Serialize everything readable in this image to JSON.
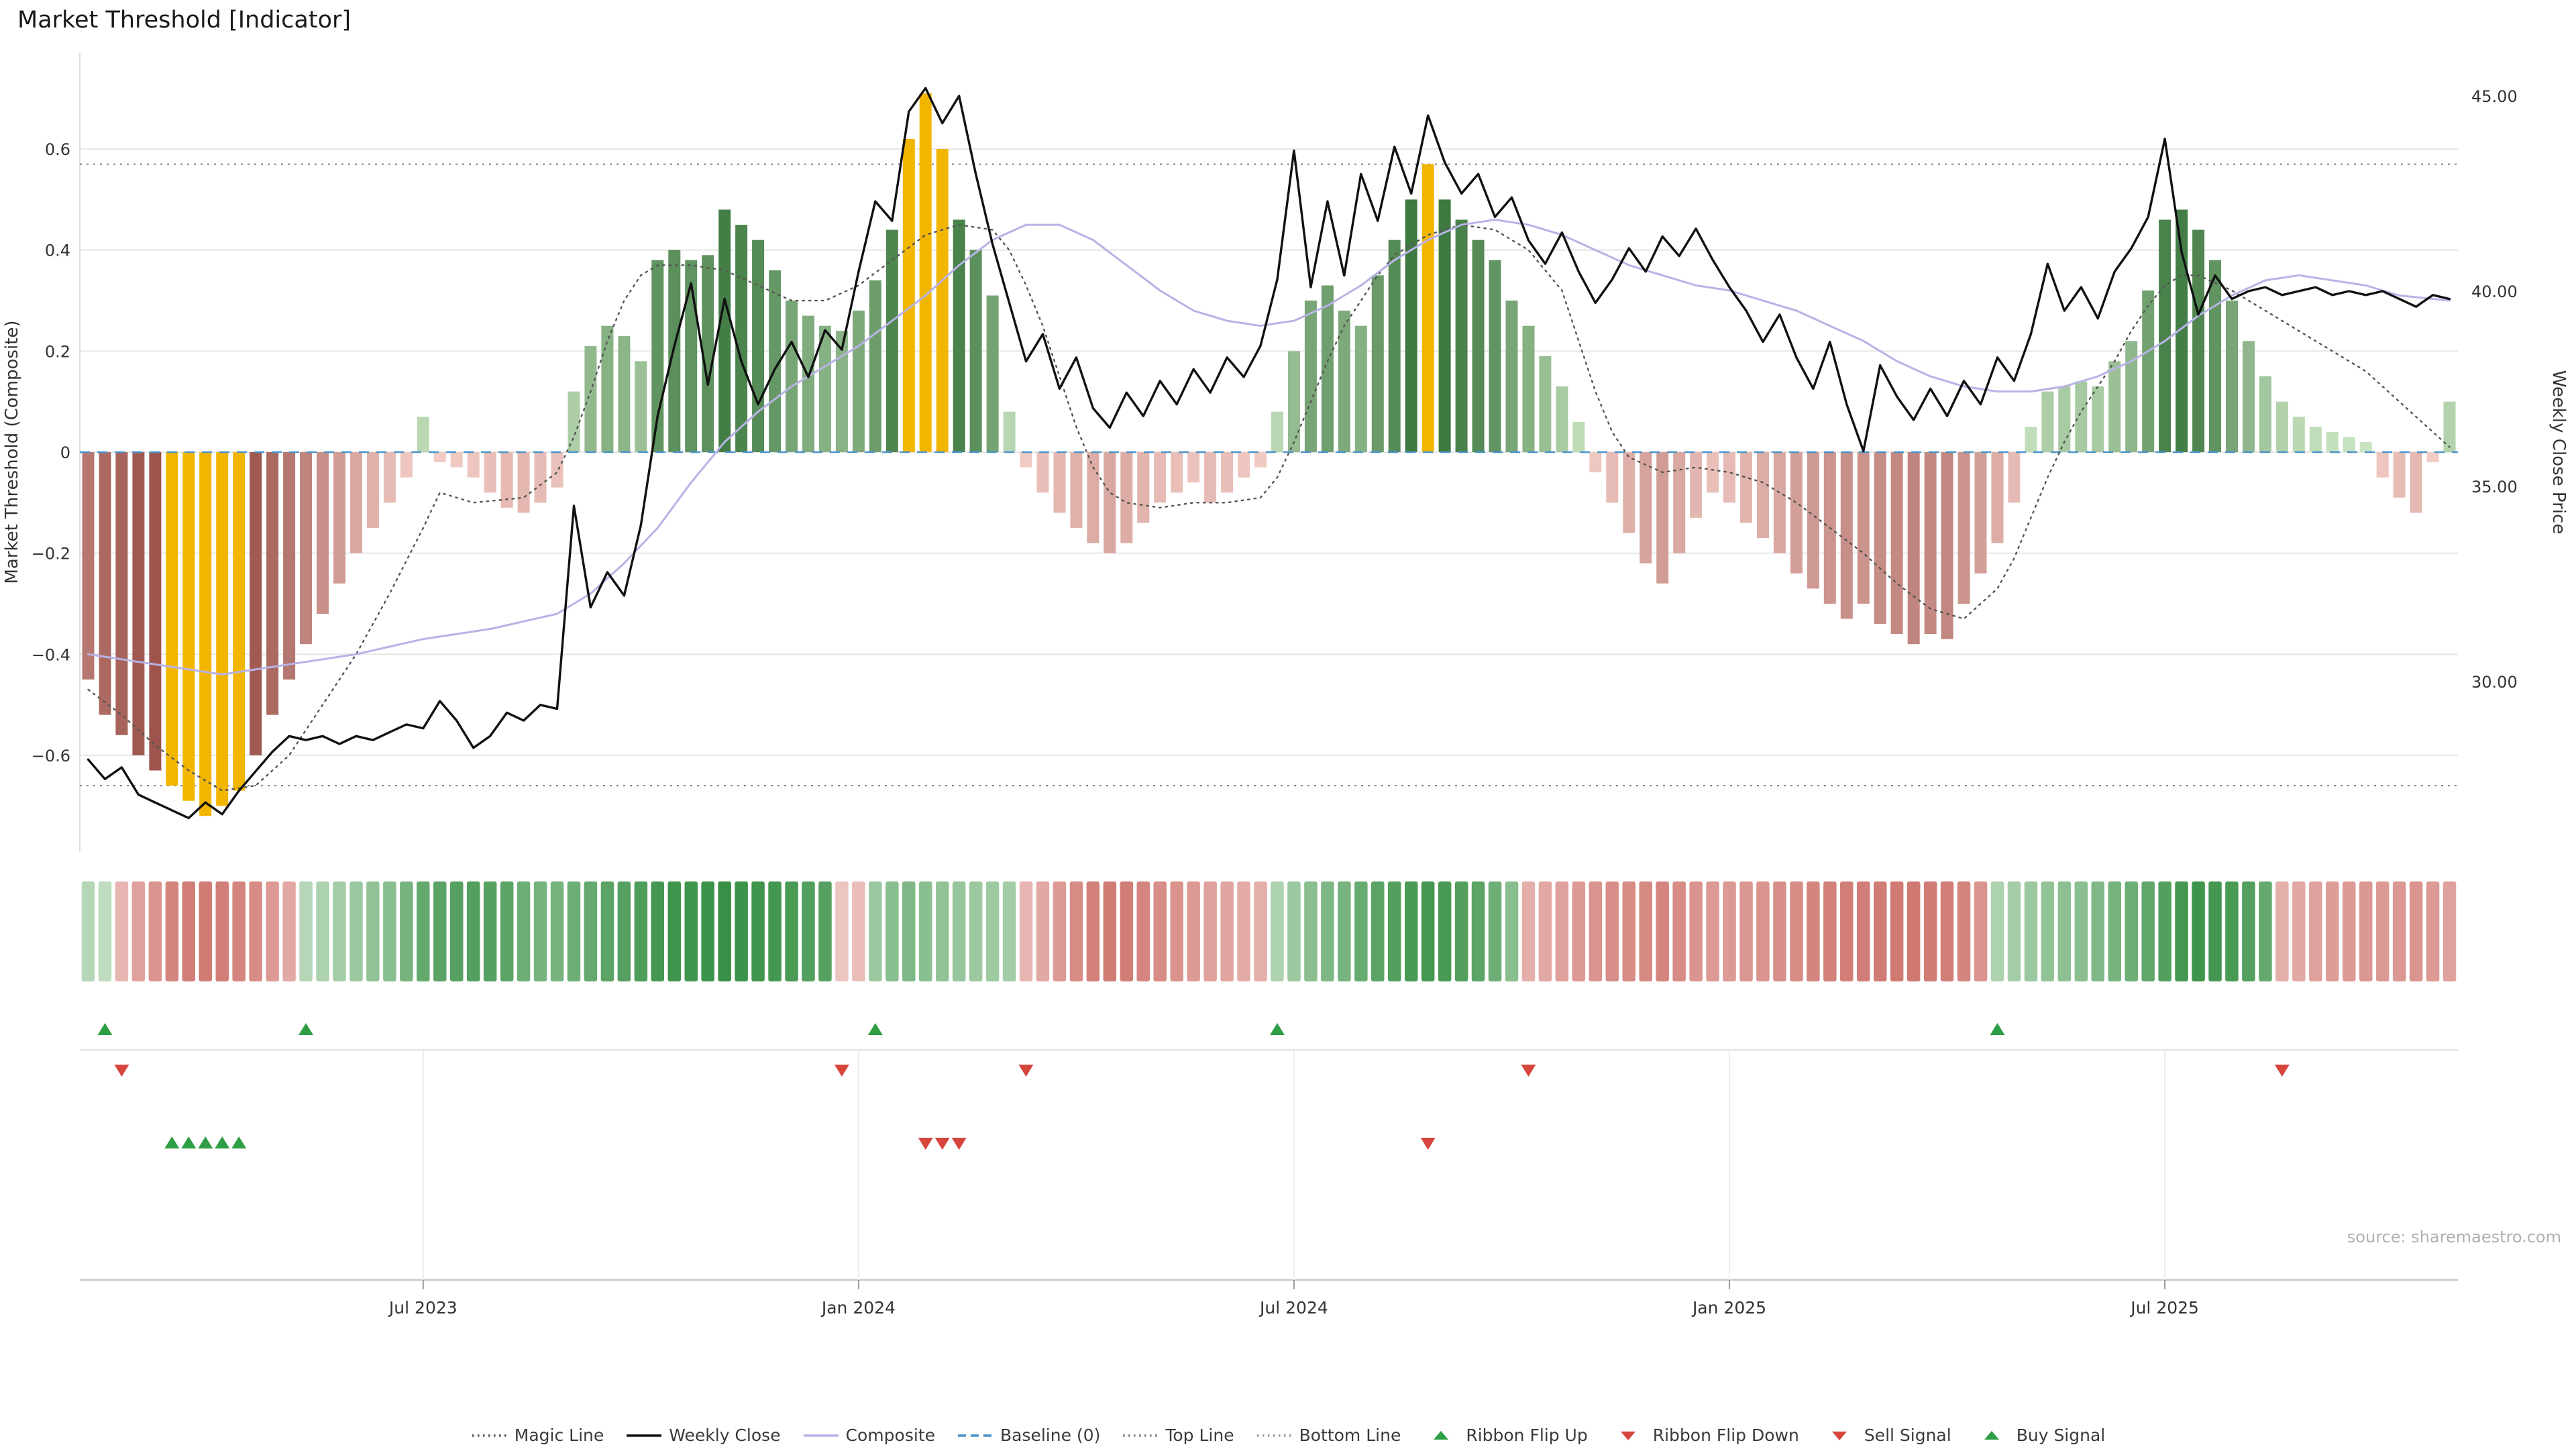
{
  "title": "Market Threshold [Indicator]",
  "source": "source: sharemaestro.com",
  "colors": {
    "bar_positive_light": "#cfe8c6",
    "bar_positive_dark": "#2f6e33",
    "bar_negative_light": "#f5cfc9",
    "bar_negative_dark": "#9a5048",
    "bar_gold": "#f2b600",
    "weekly_close": "#111111",
    "composite": "#b7b3e6",
    "magic_line": "#555555",
    "baseline": "#4a94c9",
    "top_bottom_line": "#808080",
    "grid": "#e6e6e6",
    "ribbon_positive_light": "#e3f0e0",
    "ribbon_positive_dark": "#2e8b3d",
    "ribbon_negative_light": "#f7e0dd",
    "ribbon_negative_dark": "#c2544c",
    "signal_up": "#2e9e44",
    "signal_down": "#d6453c",
    "axis_text": "#333333",
    "source_text": "#b0b0b0"
  },
  "legend_items": [
    {
      "label": "Magic Line",
      "swatch": "dotted",
      "color": "#555555"
    },
    {
      "label": "Weekly Close",
      "swatch": "solid",
      "color": "#111111"
    },
    {
      "label": "Composite",
      "swatch": "solid",
      "color": "#b7b3e6"
    },
    {
      "label": "Baseline (0)",
      "swatch": "dashed",
      "color": "#4a94c9"
    },
    {
      "label": "Top Line",
      "swatch": "dotted",
      "color": "#808080"
    },
    {
      "label": "Bottom Line",
      "swatch": "dotted",
      "color": "#9a9a9a"
    },
    {
      "label": "Ribbon Flip Up",
      "swatch": "tri-up",
      "color": "#2e9e44"
    },
    {
      "label": "Ribbon Flip Down",
      "swatch": "tri-down",
      "color": "#d6453c"
    },
    {
      "label": "Sell Signal",
      "swatch": "tri-down",
      "color": "#d6453c"
    },
    {
      "label": "Buy Signal",
      "swatch": "tri-up",
      "color": "#2e9e44"
    }
  ],
  "chart_data": {
    "type": "combo",
    "subtypes": [
      "bar",
      "line",
      "ribbon-heatmap",
      "signal-markers"
    ],
    "x_unit": "week",
    "x_ticks": [
      {
        "week": 20,
        "label": "Jul 2023"
      },
      {
        "week": 46,
        "label": "Jan 2024"
      },
      {
        "week": 72,
        "label": "Jul 2024"
      },
      {
        "week": 98,
        "label": "Jan 2025"
      },
      {
        "week": 124,
        "label": "Jul 2025"
      }
    ],
    "left_axis": {
      "label": "Market Threshold (Composite)",
      "ticks": [
        "0.6",
        "0.4",
        "0.2",
        "0",
        "−0.2",
        "−0.4",
        "−0.6"
      ],
      "tick_values": [
        0.6,
        0.4,
        0.2,
        0,
        -0.2,
        -0.4,
        -0.6
      ],
      "range": [
        -0.79,
        0.79
      ]
    },
    "right_axis": {
      "label": "Weekly Close Price",
      "ticks": [
        "45.00",
        "40.00",
        "35.00",
        "30.00"
      ],
      "tick_values": [
        45,
        40,
        35,
        30
      ],
      "range": [
        25.65,
        46.1
      ]
    },
    "baseline": 0,
    "top_line": 0.57,
    "bottom_line": -0.66,
    "threshold_bars": [
      -0.45,
      -0.52,
      -0.56,
      -0.6,
      -0.63,
      -0.66,
      -0.69,
      -0.72,
      -0.7,
      -0.67,
      -0.6,
      -0.52,
      -0.45,
      -0.38,
      -0.32,
      -0.26,
      -0.2,
      -0.15,
      -0.1,
      -0.05,
      0.07,
      -0.02,
      -0.03,
      -0.05,
      -0.08,
      -0.11,
      -0.12,
      -0.1,
      -0.07,
      0.12,
      0.21,
      0.25,
      0.23,
      0.18,
      0.38,
      0.4,
      0.38,
      0.39,
      0.48,
      0.45,
      0.42,
      0.36,
      0.3,
      0.27,
      0.25,
      0.24,
      0.28,
      0.34,
      0.44,
      0.62,
      0.71,
      0.6,
      0.46,
      0.4,
      0.31,
      0.08,
      -0.03,
      -0.08,
      -0.12,
      -0.15,
      -0.18,
      -0.2,
      -0.18,
      -0.14,
      -0.1,
      -0.08,
      -0.06,
      -0.1,
      -0.08,
      -0.05,
      -0.03,
      0.08,
      0.2,
      0.3,
      0.33,
      0.28,
      0.25,
      0.35,
      0.42,
      0.5,
      0.57,
      0.5,
      0.46,
      0.42,
      0.38,
      0.3,
      0.25,
      0.19,
      0.13,
      0.06,
      -0.04,
      -0.1,
      -0.16,
      -0.22,
      -0.26,
      -0.2,
      -0.13,
      -0.08,
      -0.1,
      -0.14,
      -0.17,
      -0.2,
      -0.24,
      -0.27,
      -0.3,
      -0.33,
      -0.3,
      -0.34,
      -0.36,
      -0.38,
      -0.36,
      -0.37,
      -0.3,
      -0.24,
      -0.18,
      -0.1,
      0.05,
      0.12,
      0.13,
      0.14,
      0.13,
      0.18,
      0.22,
      0.32,
      0.46,
      0.48,
      0.44,
      0.38,
      0.3,
      0.22,
      0.15,
      0.1,
      0.07,
      0.05,
      0.04,
      0.03,
      0.02,
      -0.05,
      -0.09,
      -0.12,
      -0.02,
      0.1
    ],
    "gold_bar_weeks": [
      5,
      6,
      7,
      8,
      9,
      49,
      50,
      51,
      80
    ],
    "weekly_close": [
      28.0,
      27.5,
      27.8,
      27.1,
      26.9,
      26.7,
      26.5,
      26.9,
      26.6,
      27.2,
      27.7,
      28.2,
      28.6,
      28.5,
      28.6,
      28.4,
      28.6,
      28.5,
      28.7,
      28.9,
      28.8,
      29.5,
      29.0,
      28.3,
      28.6,
      29.2,
      29.0,
      29.4,
      29.3,
      34.5,
      31.9,
      32.8,
      32.2,
      34.0,
      36.8,
      38.6,
      40.2,
      37.6,
      39.8,
      38.2,
      37.1,
      38.0,
      38.7,
      37.8,
      39.0,
      38.5,
      40.5,
      42.3,
      41.8,
      44.6,
      45.2,
      44.3,
      45.0,
      43.0,
      41.2,
      39.7,
      38.2,
      38.9,
      37.5,
      38.3,
      37.0,
      36.5,
      37.4,
      36.8,
      37.7,
      37.1,
      38.0,
      37.4,
      38.3,
      37.8,
      38.6,
      40.3,
      43.6,
      40.1,
      42.3,
      40.4,
      43.0,
      41.8,
      43.7,
      42.5,
      44.5,
      43.3,
      42.5,
      43.0,
      41.9,
      42.4,
      41.3,
      40.7,
      41.5,
      40.5,
      39.7,
      40.3,
      41.1,
      40.5,
      41.4,
      40.9,
      41.6,
      40.8,
      40.1,
      39.5,
      38.7,
      39.4,
      38.3,
      37.5,
      38.7,
      37.1,
      35.9,
      38.1,
      37.3,
      36.7,
      37.5,
      36.8,
      37.7,
      37.1,
      38.3,
      37.7,
      38.9,
      40.7,
      39.5,
      40.1,
      39.3,
      40.5,
      41.1,
      41.9,
      43.9,
      41.0,
      39.4,
      40.4,
      39.8,
      40.0,
      40.1,
      39.9,
      40.0,
      40.1,
      39.9,
      40.0,
      39.9,
      40.0,
      39.8,
      39.6,
      39.9,
      39.8
    ],
    "composite_keypoints": [
      [
        0,
        -0.4
      ],
      [
        4,
        -0.42
      ],
      [
        8,
        -0.44
      ],
      [
        12,
        -0.42
      ],
      [
        16,
        -0.4
      ],
      [
        20,
        -0.37
      ],
      [
        24,
        -0.35
      ],
      [
        28,
        -0.32
      ],
      [
        30,
        -0.28
      ],
      [
        32,
        -0.22
      ],
      [
        34,
        -0.15
      ],
      [
        36,
        -0.06
      ],
      [
        38,
        0.02
      ],
      [
        40,
        0.08
      ],
      [
        42,
        0.13
      ],
      [
        44,
        0.17
      ],
      [
        46,
        0.21
      ],
      [
        48,
        0.26
      ],
      [
        50,
        0.31
      ],
      [
        52,
        0.37
      ],
      [
        54,
        0.42
      ],
      [
        56,
        0.45
      ],
      [
        58,
        0.45
      ],
      [
        60,
        0.42
      ],
      [
        62,
        0.37
      ],
      [
        64,
        0.32
      ],
      [
        66,
        0.28
      ],
      [
        68,
        0.26
      ],
      [
        70,
        0.25
      ],
      [
        72,
        0.26
      ],
      [
        74,
        0.29
      ],
      [
        76,
        0.33
      ],
      [
        78,
        0.38
      ],
      [
        80,
        0.42
      ],
      [
        82,
        0.45
      ],
      [
        84,
        0.46
      ],
      [
        86,
        0.45
      ],
      [
        88,
        0.43
      ],
      [
        90,
        0.4
      ],
      [
        92,
        0.37
      ],
      [
        94,
        0.35
      ],
      [
        96,
        0.33
      ],
      [
        98,
        0.32
      ],
      [
        100,
        0.3
      ],
      [
        102,
        0.28
      ],
      [
        104,
        0.25
      ],
      [
        106,
        0.22
      ],
      [
        108,
        0.18
      ],
      [
        110,
        0.15
      ],
      [
        112,
        0.13
      ],
      [
        114,
        0.12
      ],
      [
        116,
        0.12
      ],
      [
        118,
        0.13
      ],
      [
        120,
        0.15
      ],
      [
        122,
        0.18
      ],
      [
        124,
        0.22
      ],
      [
        126,
        0.27
      ],
      [
        128,
        0.31
      ],
      [
        130,
        0.34
      ],
      [
        132,
        0.35
      ],
      [
        134,
        0.34
      ],
      [
        136,
        0.33
      ],
      [
        138,
        0.31
      ],
      [
        141,
        0.3
      ]
    ],
    "magic_line_keypoints": [
      [
        0,
        -0.47
      ],
      [
        2,
        -0.52
      ],
      [
        4,
        -0.58
      ],
      [
        6,
        -0.63
      ],
      [
        8,
        -0.67
      ],
      [
        10,
        -0.66
      ],
      [
        12,
        -0.6
      ],
      [
        14,
        -0.5
      ],
      [
        16,
        -0.4
      ],
      [
        18,
        -0.28
      ],
      [
        20,
        -0.15
      ],
      [
        21,
        -0.08
      ],
      [
        23,
        -0.1
      ],
      [
        26,
        -0.09
      ],
      [
        28,
        -0.04
      ],
      [
        29,
        0.03
      ],
      [
        30,
        0.12
      ],
      [
        31,
        0.22
      ],
      [
        32,
        0.3
      ],
      [
        33,
        0.35
      ],
      [
        34,
        0.37
      ],
      [
        36,
        0.37
      ],
      [
        38,
        0.36
      ],
      [
        40,
        0.33
      ],
      [
        42,
        0.3
      ],
      [
        44,
        0.3
      ],
      [
        46,
        0.33
      ],
      [
        48,
        0.38
      ],
      [
        50,
        0.43
      ],
      [
        52,
        0.45
      ],
      [
        54,
        0.44
      ],
      [
        55,
        0.4
      ],
      [
        56,
        0.33
      ],
      [
        57,
        0.25
      ],
      [
        58,
        0.15
      ],
      [
        59,
        0.05
      ],
      [
        60,
        -0.03
      ],
      [
        61,
        -0.08
      ],
      [
        62,
        -0.1
      ],
      [
        64,
        -0.11
      ],
      [
        66,
        -0.1
      ],
      [
        68,
        -0.1
      ],
      [
        70,
        -0.09
      ],
      [
        71,
        -0.05
      ],
      [
        72,
        0.02
      ],
      [
        73,
        0.1
      ],
      [
        74,
        0.18
      ],
      [
        75,
        0.25
      ],
      [
        76,
        0.3
      ],
      [
        77,
        0.35
      ],
      [
        78,
        0.39
      ],
      [
        80,
        0.43
      ],
      [
        82,
        0.45
      ],
      [
        84,
        0.44
      ],
      [
        86,
        0.4
      ],
      [
        88,
        0.32
      ],
      [
        89,
        0.22
      ],
      [
        90,
        0.12
      ],
      [
        91,
        0.04
      ],
      [
        92,
        -0.01
      ],
      [
        94,
        -0.04
      ],
      [
        96,
        -0.03
      ],
      [
        98,
        -0.04
      ],
      [
        100,
        -0.06
      ],
      [
        102,
        -0.1
      ],
      [
        104,
        -0.15
      ],
      [
        106,
        -0.2
      ],
      [
        108,
        -0.26
      ],
      [
        110,
        -0.31
      ],
      [
        112,
        -0.33
      ],
      [
        114,
        -0.27
      ],
      [
        115,
        -0.21
      ],
      [
        116,
        -0.13
      ],
      [
        117,
        -0.05
      ],
      [
        118,
        0.02
      ],
      [
        119,
        0.08
      ],
      [
        120,
        0.13
      ],
      [
        121,
        0.18
      ],
      [
        122,
        0.24
      ],
      [
        123,
        0.29
      ],
      [
        124,
        0.33
      ],
      [
        125,
        0.35
      ],
      [
        126,
        0.35
      ],
      [
        128,
        0.32
      ],
      [
        130,
        0.28
      ],
      [
        132,
        0.24
      ],
      [
        134,
        0.2
      ],
      [
        136,
        0.16
      ],
      [
        138,
        0.1
      ],
      [
        140,
        0.04
      ],
      [
        141,
        0.01
      ]
    ],
    "ribbon": [
      0.25,
      0.2,
      -0.3,
      -0.45,
      -0.55,
      -0.65,
      -0.7,
      -0.72,
      -0.7,
      -0.65,
      -0.6,
      -0.5,
      -0.4,
      0.25,
      0.3,
      0.35,
      0.4,
      0.45,
      0.5,
      0.6,
      0.7,
      0.75,
      0.78,
      0.8,
      0.78,
      0.75,
      0.65,
      0.6,
      0.6,
      0.65,
      0.7,
      0.75,
      0.78,
      0.82,
      0.88,
      0.9,
      0.9,
      0.92,
      0.95,
      0.92,
      0.9,
      0.88,
      0.85,
      0.8,
      0.78,
      -0.2,
      -0.25,
      0.4,
      0.5,
      0.55,
      0.5,
      0.45,
      0.42,
      0.4,
      0.38,
      0.35,
      -0.3,
      -0.4,
      -0.5,
      -0.6,
      -0.68,
      -0.72,
      -0.7,
      -0.65,
      -0.6,
      -0.55,
      -0.5,
      -0.45,
      -0.42,
      -0.38,
      -0.35,
      0.3,
      0.4,
      0.5,
      0.55,
      0.6,
      0.68,
      0.75,
      0.8,
      0.85,
      0.88,
      0.85,
      0.8,
      0.75,
      0.65,
      0.5,
      -0.35,
      -0.4,
      -0.45,
      -0.5,
      -0.55,
      -0.58,
      -0.6,
      -0.62,
      -0.65,
      -0.6,
      -0.55,
      -0.5,
      -0.5,
      -0.52,
      -0.55,
      -0.58,
      -0.6,
      -0.65,
      -0.68,
      -0.7,
      -0.7,
      -0.72,
      -0.73,
      -0.74,
      -0.72,
      -0.7,
      -0.65,
      -0.55,
      0.3,
      0.35,
      0.4,
      0.45,
      0.48,
      0.5,
      0.55,
      0.6,
      0.65,
      0.72,
      0.8,
      0.88,
      0.9,
      0.88,
      0.85,
      0.8,
      0.7,
      -0.35,
      -0.4,
      -0.45,
      -0.48,
      -0.5,
      -0.52,
      -0.5,
      -0.52,
      -0.55,
      -0.5,
      -0.45
    ],
    "signals": {
      "ribbon_flip_up_weeks": [
        1,
        13,
        47,
        71,
        114
      ],
      "ribbon_flip_down_weeks": [
        2,
        45,
        56,
        86,
        131
      ],
      "buy_weeks": [
        5,
        6,
        7,
        8,
        9
      ],
      "sell_weeks": [
        50,
        51,
        52,
        80
      ]
    }
  }
}
